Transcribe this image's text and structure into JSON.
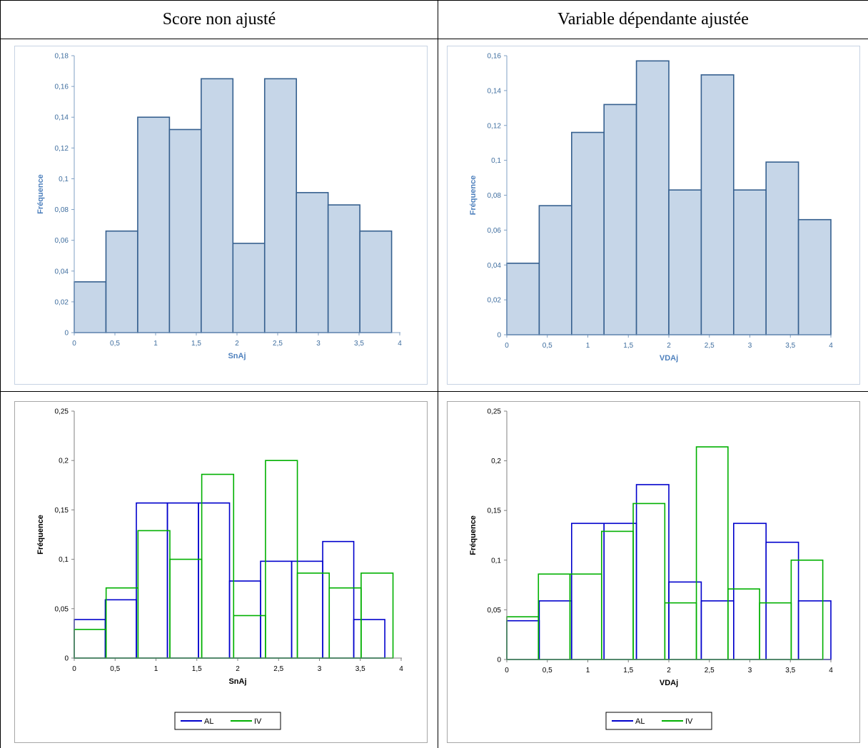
{
  "headers": {
    "left": "Score non ajusté",
    "right": "Variable dépendante ajustée"
  },
  "chart_data": [
    {
      "type": "bar",
      "panel": "top-left",
      "xlabel": "SnAj",
      "ylabel": "Fréquence",
      "xlim": [
        0,
        4
      ],
      "ylim": [
        0,
        0.18
      ],
      "xticks": [
        "0",
        "0,5",
        "1",
        "1,5",
        "2",
        "2,5",
        "3",
        "3,5",
        "4"
      ],
      "yticks": [
        "0",
        "0,02",
        "0,04",
        "0,06",
        "0,08",
        "0,1",
        "0,12",
        "0,14",
        "0,16",
        "0,18"
      ],
      "bin_edges": [
        0,
        0.39,
        0.78,
        1.17,
        1.56,
        1.95,
        2.34,
        2.73,
        3.12,
        3.51,
        3.9
      ],
      "values": [
        0.033,
        0.066,
        0.14,
        0.132,
        0.165,
        0.058,
        0.165,
        0.091,
        0.083,
        0.066
      ],
      "fill": "#c6d6e8",
      "stroke": "#36608f"
    },
    {
      "type": "bar",
      "panel": "top-right",
      "xlabel": "VDAj",
      "ylabel": "Fréquence",
      "xlim": [
        0,
        4
      ],
      "ylim": [
        0,
        0.16
      ],
      "xticks": [
        "0",
        "0,5",
        "1",
        "1,5",
        "2",
        "2,5",
        "3",
        "3,5",
        "4"
      ],
      "yticks": [
        "0",
        "0,02",
        "0,04",
        "0,06",
        "0,08",
        "0,1",
        "0,12",
        "0,14",
        "0,16"
      ],
      "bin_edges": [
        0,
        0.4,
        0.8,
        1.2,
        1.6,
        2.0,
        2.4,
        2.8,
        3.2,
        3.6,
        4.0
      ],
      "values": [
        0.041,
        0.074,
        0.116,
        0.132,
        0.157,
        0.083,
        0.149,
        0.083,
        0.099,
        0.066
      ],
      "fill": "#c6d6e8",
      "stroke": "#36608f"
    },
    {
      "type": "bar",
      "panel": "bottom-left",
      "xlabel": "SnAj",
      "ylabel": "Fréquence",
      "xlim": [
        0,
        4
      ],
      "ylim": [
        0,
        0.25
      ],
      "xticks": [
        "0",
        "0,5",
        "1",
        "1,5",
        "2",
        "2,5",
        "3",
        "3,5",
        "4"
      ],
      "yticks": [
        "0",
        "0,05",
        "0,1",
        "0,15",
        "0,2",
        "0,25"
      ],
      "legend": "bottom",
      "series": [
        {
          "name": "AL",
          "color": "#0000cc",
          "bin_edges": [
            0,
            0.38,
            0.76,
            1.14,
            1.52,
            1.9,
            2.28,
            2.66,
            3.04,
            3.42,
            3.8
          ],
          "values": [
            0.039,
            0.059,
            0.157,
            0.157,
            0.157,
            0.078,
            0.098,
            0.098,
            0.118,
            0.039
          ]
        },
        {
          "name": "IV",
          "color": "#00b000",
          "bin_edges": [
            0,
            0.39,
            0.78,
            1.17,
            1.56,
            1.95,
            2.34,
            2.73,
            3.12,
            3.51,
            3.9
          ],
          "values": [
            0.029,
            0.071,
            0.129,
            0.1,
            0.186,
            0.043,
            0.2,
            0.086,
            0.071,
            0.086
          ]
        }
      ]
    },
    {
      "type": "bar",
      "panel": "bottom-right",
      "xlabel": "VDAj",
      "ylabel": "Fréquence",
      "xlim": [
        0,
        4
      ],
      "ylim": [
        0,
        0.25
      ],
      "xticks": [
        "0",
        "0,5",
        "1",
        "1,5",
        "2",
        "2,5",
        "3",
        "3,5",
        "4"
      ],
      "yticks": [
        "0",
        "0,05",
        "0,1",
        "0,15",
        "0,2",
        "0,25"
      ],
      "legend": "bottom",
      "series": [
        {
          "name": "AL",
          "color": "#0000cc",
          "bin_edges": [
            0,
            0.4,
            0.8,
            1.2,
            1.6,
            2.0,
            2.4,
            2.8,
            3.2,
            3.6,
            4.0
          ],
          "values": [
            0.039,
            0.059,
            0.137,
            0.137,
            0.176,
            0.078,
            0.059,
            0.137,
            0.118,
            0.059
          ]
        },
        {
          "name": "IV",
          "color": "#00b000",
          "bin_edges": [
            0,
            0.39,
            0.78,
            1.17,
            1.56,
            1.95,
            2.34,
            2.73,
            3.12,
            3.51,
            3.9
          ],
          "values": [
            0.043,
            0.086,
            0.086,
            0.129,
            0.157,
            0.057,
            0.214,
            0.071,
            0.057,
            0.1
          ]
        }
      ]
    }
  ]
}
